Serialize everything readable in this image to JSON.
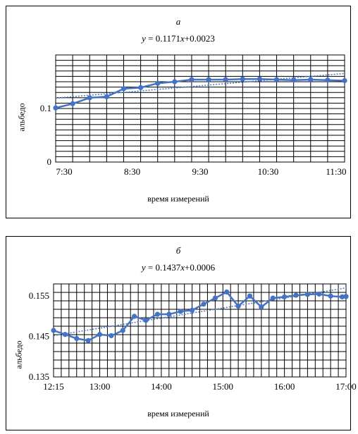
{
  "chart_data": [
    {
      "type": "line",
      "panel_letter": "а",
      "trendline": {
        "slope": "0.1171",
        "intercept": "+0.0023",
        "y": "y",
        "x": "x"
      },
      "xlabel": "время измерений",
      "ylabel": "альбедо",
      "ylim": [
        0,
        0.2
      ],
      "y_ticks": [
        {
          "value": 0,
          "label": "0"
        },
        {
          "value": 0.1,
          "label": "0.1"
        }
      ],
      "y_grid_step": 0.01,
      "x_tick_labels": [
        "7:30",
        "8:30",
        "9:30",
        "10:30",
        "11:30"
      ],
      "x_tick_positions": [
        0.5,
        4.5,
        8.5,
        12.5,
        16.5
      ],
      "x_grid_count": 17,
      "x": [
        0,
        1,
        2,
        3,
        4,
        5,
        6,
        7,
        8,
        9,
        10,
        11,
        12,
        13,
        14,
        15,
        16,
        17
      ],
      "values": [
        0.101,
        0.109,
        0.12,
        0.122,
        0.137,
        0.139,
        0.147,
        0.15,
        0.154,
        0.154,
        0.154,
        0.155,
        0.155,
        0.154,
        0.153,
        0.154,
        0.153,
        0.152
      ],
      "series_color": "#4472c4",
      "trend_color": "#4a7fc8",
      "grid": true
    },
    {
      "type": "line",
      "panel_letter": "б",
      "trendline": {
        "slope": "0.1437",
        "intercept": "+0.0006",
        "y": "y",
        "x": "x"
      },
      "xlabel": "время измерений",
      "ylabel": "альбедо",
      "ylim": [
        0.135,
        0.158
      ],
      "y_ticks": [
        {
          "value": 0.135,
          "label": "0.135"
        },
        {
          "value": 0.145,
          "label": "0.145"
        },
        {
          "value": 0.155,
          "label": "0.155"
        }
      ],
      "y_grid_step": 0.002,
      "x_tick_labels": [
        "12:15",
        "13:00",
        "14:00",
        "15:00",
        "16:00",
        "17:00"
      ],
      "x_tick_positions": [
        0,
        3,
        7,
        11,
        15,
        19
      ],
      "x_grid_count": 38,
      "x": [
        0,
        0.75,
        1.5,
        2.25,
        3,
        3.75,
        4.5,
        5.25,
        6,
        6.75,
        7.5,
        8.25,
        9,
        9.75,
        10.5,
        11.25,
        12,
        12.75,
        13.5,
        14.25,
        15,
        15.75,
        16.5,
        17.25,
        18,
        18.75,
        19
      ],
      "values": [
        0.1465,
        0.1455,
        0.1445,
        0.144,
        0.1455,
        0.1452,
        0.1465,
        0.15,
        0.149,
        0.1505,
        0.1505,
        0.1512,
        0.1515,
        0.153,
        0.1545,
        0.156,
        0.1525,
        0.155,
        0.1523,
        0.1545,
        0.1548,
        0.1552,
        0.1554,
        0.1555,
        0.155,
        0.1548,
        0.1549
      ],
      "series_color": "#4472c4",
      "trend_color": "#4a7fc8",
      "grid": true
    }
  ]
}
